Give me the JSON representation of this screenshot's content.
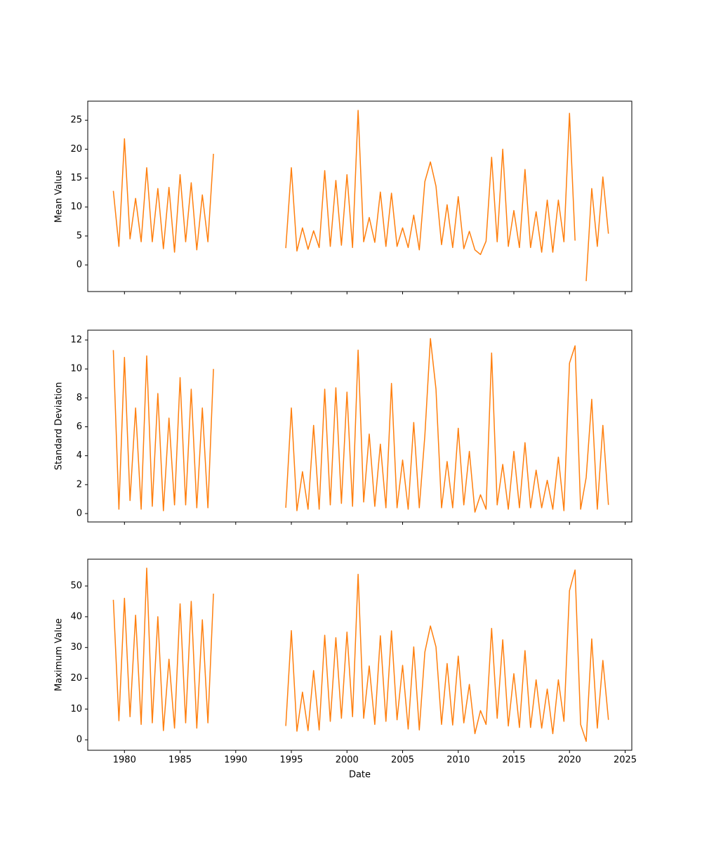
{
  "chart_data": [
    {
      "type": "line",
      "ylabel": "Mean Value",
      "color": "#ff7f0e",
      "x": [
        1979.0,
        1979.5,
        1980.0,
        1980.5,
        1981.0,
        1981.5,
        1982.0,
        1982.5,
        1983.0,
        1983.5,
        1984.0,
        1984.5,
        1985.0,
        1985.5,
        1986.0,
        1986.5,
        1987.0,
        1987.5,
        1988.0,
        1991.0,
        1994.5,
        1995.0,
        1995.5,
        1996.0,
        1996.5,
        1997.0,
        1997.5,
        1998.0,
        1998.5,
        1999.0,
        1999.5,
        2000.0,
        2000.5,
        2001.0,
        2001.5,
        2002.0,
        2002.5,
        2003.0,
        2003.5,
        2004.0,
        2004.5,
        2005.0,
        2005.5,
        2006.0,
        2006.5,
        2007.0,
        2007.5,
        2008.0,
        2008.5,
        2009.0,
        2009.5,
        2010.0,
        2010.5,
        2011.0,
        2011.5,
        2012.0,
        2012.5,
        2013.0,
        2013.5,
        2014.0,
        2014.5,
        2015.0,
        2015.5,
        2016.0,
        2016.5,
        2017.0,
        2017.5,
        2018.0,
        2018.5,
        2019.0,
        2019.5,
        2020.0,
        2020.5,
        2021.0,
        2021.5,
        2022.0,
        2022.5,
        2023.0,
        2023.5
      ],
      "values": [
        12.8,
        3.2,
        21.8,
        4.5,
        11.5,
        4.0,
        16.8,
        4.0,
        13.2,
        2.8,
        13.4,
        2.2,
        15.6,
        4.0,
        14.2,
        2.6,
        12.1,
        4.0,
        19.2,
        null,
        2.9,
        16.8,
        2.4,
        6.4,
        2.7,
        5.9,
        3.0,
        16.3,
        3.2,
        14.6,
        3.4,
        15.6,
        3.0,
        26.7,
        4.0,
        8.2,
        3.9,
        12.6,
        3.2,
        12.4,
        3.2,
        6.4,
        3.0,
        8.6,
        2.6,
        14.4,
        17.8,
        13.6,
        3.5,
        10.4,
        3.0,
        11.8,
        2.8,
        5.8,
        2.6,
        1.8,
        4.1,
        18.6,
        4.0,
        20.0,
        3.2,
        9.4,
        3.0,
        16.5,
        3.0,
        9.2,
        2.2,
        11.2,
        2.2,
        11.2,
        4.0,
        26.2,
        4.2,
        null,
        -2.8,
        13.2,
        3.2,
        15.2,
        5.4
      ],
      "xlim": [
        1976.7,
        2025.6
      ],
      "xticks": [
        1980,
        1985,
        1990,
        1995,
        2000,
        2005,
        2010,
        2015,
        2020,
        2025
      ],
      "ylim": [
        -4.6,
        28.3
      ],
      "yticks": [
        0,
        5,
        10,
        15,
        20,
        25
      ]
    },
    {
      "type": "line",
      "ylabel": "Standard Deviation",
      "color": "#ff7f0e",
      "x": [
        1979.0,
        1979.5,
        1980.0,
        1980.5,
        1981.0,
        1981.5,
        1982.0,
        1982.5,
        1983.0,
        1983.5,
        1984.0,
        1984.5,
        1985.0,
        1985.5,
        1986.0,
        1986.5,
        1987.0,
        1987.5,
        1988.0,
        1991.0,
        1994.5,
        1995.0,
        1995.5,
        1996.0,
        1996.5,
        1997.0,
        1997.5,
        1998.0,
        1998.5,
        1999.0,
        1999.5,
        2000.0,
        2000.5,
        2001.0,
        2001.5,
        2002.0,
        2002.5,
        2003.0,
        2003.5,
        2004.0,
        2004.5,
        2005.0,
        2005.5,
        2006.0,
        2006.5,
        2007.0,
        2007.5,
        2008.0,
        2008.5,
        2009.0,
        2009.5,
        2010.0,
        2010.5,
        2011.0,
        2011.5,
        2012.0,
        2012.5,
        2013.0,
        2013.5,
        2014.0,
        2014.5,
        2015.0,
        2015.5,
        2016.0,
        2016.5,
        2017.0,
        2017.5,
        2018.0,
        2018.5,
        2019.0,
        2019.5,
        2020.0,
        2020.5,
        2021.0,
        2021.5,
        2022.0,
        2022.5,
        2023.0,
        2023.5
      ],
      "values": [
        11.3,
        0.3,
        10.8,
        0.9,
        7.3,
        0.3,
        10.9,
        0.5,
        8.3,
        0.2,
        6.6,
        0.6,
        9.4,
        0.6,
        8.6,
        0.4,
        7.3,
        0.4,
        10.0,
        null,
        0.4,
        7.3,
        0.2,
        2.9,
        0.3,
        6.1,
        0.3,
        8.6,
        0.6,
        8.7,
        0.7,
        8.4,
        0.5,
        11.3,
        0.8,
        5.5,
        0.5,
        4.8,
        0.4,
        9.0,
        0.4,
        3.7,
        0.3,
        6.3,
        0.4,
        5.4,
        12.1,
        8.6,
        0.4,
        3.6,
        0.4,
        5.9,
        0.6,
        4.3,
        0.1,
        1.3,
        0.3,
        11.1,
        0.6,
        3.4,
        0.3,
        4.3,
        0.4,
        4.9,
        0.4,
        3.0,
        0.4,
        2.3,
        0.3,
        3.9,
        0.2,
        10.4,
        11.6,
        0.3,
        2.5,
        7.9,
        0.3,
        6.1,
        0.6
      ],
      "xlim": [
        1976.7,
        2025.6
      ],
      "xticks": [
        1980,
        1985,
        1990,
        1995,
        2000,
        2005,
        2010,
        2015,
        2020,
        2025
      ],
      "ylim": [
        -0.58,
        12.68
      ],
      "yticks": [
        0,
        2,
        4,
        6,
        8,
        10,
        12
      ]
    },
    {
      "type": "line",
      "ylabel": "Maximum Value",
      "xlabel": "Date",
      "color": "#ff7f0e",
      "x": [
        1979.0,
        1979.5,
        1980.0,
        1980.5,
        1981.0,
        1981.5,
        1982.0,
        1982.5,
        1983.0,
        1983.5,
        1984.0,
        1984.5,
        1985.0,
        1985.5,
        1986.0,
        1986.5,
        1987.0,
        1987.5,
        1988.0,
        1991.0,
        1994.5,
        1995.0,
        1995.5,
        1996.0,
        1996.5,
        1997.0,
        1997.5,
        1998.0,
        1998.5,
        1999.0,
        1999.5,
        2000.0,
        2000.5,
        2001.0,
        2001.5,
        2002.0,
        2002.5,
        2003.0,
        2003.5,
        2004.0,
        2004.5,
        2005.0,
        2005.5,
        2006.0,
        2006.5,
        2007.0,
        2007.5,
        2008.0,
        2008.5,
        2009.0,
        2009.5,
        2010.0,
        2010.5,
        2011.0,
        2011.5,
        2012.0,
        2012.5,
        2013.0,
        2013.5,
        2014.0,
        2014.5,
        2015.0,
        2015.5,
        2016.0,
        2016.5,
        2017.0,
        2017.5,
        2018.0,
        2018.5,
        2019.0,
        2019.5,
        2020.0,
        2020.5,
        2021.0,
        2021.5,
        2022.0,
        2022.5,
        2023.0,
        2023.5
      ],
      "values": [
        45.5,
        6.2,
        46.0,
        7.5,
        40.5,
        5.0,
        55.8,
        5.5,
        40.0,
        3.0,
        26.2,
        3.8,
        44.2,
        5.5,
        45.0,
        3.8,
        39.0,
        5.5,
        47.5,
        null,
        4.5,
        35.5,
        2.8,
        15.5,
        3.0,
        22.5,
        3.2,
        34.0,
        6.0,
        33.2,
        7.0,
        35.0,
        7.5,
        53.8,
        7.0,
        24.0,
        5.0,
        33.8,
        6.0,
        35.4,
        6.5,
        24.2,
        3.5,
        30.2,
        3.2,
        28.5,
        37.0,
        30.2,
        5.0,
        24.8,
        4.8,
        27.2,
        5.5,
        18.0,
        2.0,
        9.5,
        5.0,
        36.2,
        7.0,
        32.5,
        4.5,
        21.5,
        4.0,
        29.0,
        4.0,
        19.5,
        3.8,
        16.5,
        2.0,
        19.5,
        6.0,
        48.5,
        55.2,
        5.0,
        -0.5,
        32.8,
        3.8,
        25.8,
        6.5
      ],
      "xlim": [
        1976.7,
        2025.6
      ],
      "xticks": [
        1980,
        1985,
        1990,
        1995,
        2000,
        2005,
        2010,
        2015,
        2020,
        2025
      ],
      "ylim": [
        -3.4,
        58.7
      ],
      "yticks": [
        0,
        10,
        20,
        30,
        40,
        50
      ]
    }
  ]
}
